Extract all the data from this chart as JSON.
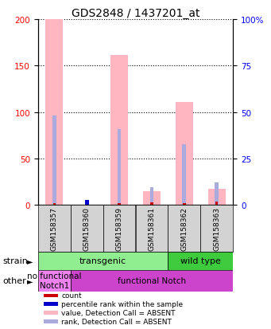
{
  "title": "GDS2848 / 1437201_at",
  "samples": [
    "GSM158357",
    "GSM158360",
    "GSM158359",
    "GSM158361",
    "GSM158362",
    "GSM158363"
  ],
  "value_absent": [
    200,
    0,
    161,
    15,
    111,
    17
  ],
  "rank_absent_left_scale": [
    96,
    0,
    82,
    19,
    65,
    24
  ],
  "count_vals": [
    2,
    0,
    2,
    3,
    2,
    4
  ],
  "rank_present_left_scale": [
    0,
    5,
    0,
    0,
    0,
    0
  ],
  "ylim_left": [
    0,
    200
  ],
  "ylim_right": [
    0,
    100
  ],
  "yticks_left": [
    0,
    50,
    100,
    150,
    200
  ],
  "yticks_right": [
    0,
    25,
    50,
    75,
    100
  ],
  "yticklabels_right": [
    "0",
    "25",
    "50",
    "75",
    "100%"
  ],
  "strain_labels": [
    {
      "text": "transgenic",
      "span": [
        0,
        4
      ],
      "color": "#90EE90"
    },
    {
      "text": "wild type",
      "span": [
        4,
        6
      ],
      "color": "#3ECC3E"
    }
  ],
  "other_labels": [
    {
      "text": "no functional\nNotch1",
      "span": [
        0,
        1
      ],
      "color": "#EE82EE"
    },
    {
      "text": "functional Notch",
      "span": [
        1,
        6
      ],
      "color": "#CC44CC"
    }
  ],
  "legend_items": [
    {
      "color": "#CC0000",
      "label": "count"
    },
    {
      "color": "#0000CC",
      "label": "percentile rank within the sample"
    },
    {
      "color": "#FFB6C1",
      "label": "value, Detection Call = ABSENT"
    },
    {
      "color": "#AAAADD",
      "label": "rank, Detection Call = ABSENT"
    }
  ],
  "value_color": "#FFB6C1",
  "rank_color_absent": "#AAAADD",
  "count_color": "#CC0000",
  "rank_color_present": "#0000CC",
  "bg_color": "#D3D3D3",
  "pink_bar_width": 0.55,
  "blue_bar_width": 0.12,
  "red_bar_width": 0.08
}
